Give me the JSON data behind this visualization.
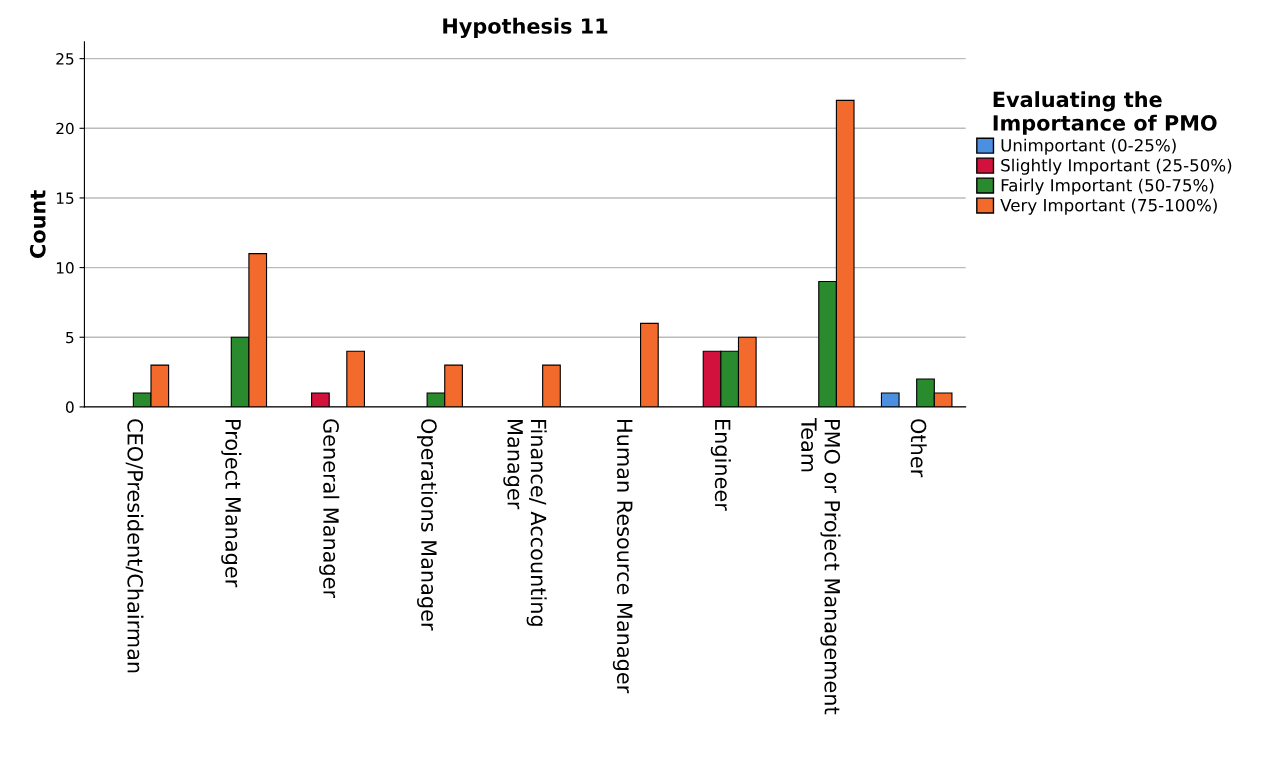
{
  "chart_data": {
    "type": "bar",
    "title": "Hypothesis 11",
    "ylabel": "Count",
    "legend_title": "Evaluating the\nImportance of PMO",
    "categories": [
      "CEO/President/Chairman",
      "Project Manager",
      "General Manager",
      "Operations Manager",
      "Finance/ Accounting\nManager",
      "Human Resource Manager",
      "Engineer",
      "PMO or Project Management\nTeam",
      "Other"
    ],
    "series": [
      {
        "name": "Unimportant (0-25%)",
        "color": "#4a8fe0",
        "values": [
          null,
          null,
          null,
          null,
          null,
          null,
          null,
          null,
          1
        ]
      },
      {
        "name": "Slightly Important (25-50%)",
        "color": "#d2123c",
        "values": [
          null,
          null,
          1,
          null,
          null,
          null,
          4,
          null,
          null
        ]
      },
      {
        "name": "Fairly Important (50-75%)",
        "color": "#2a8a2e",
        "values": [
          1,
          5,
          null,
          1,
          null,
          null,
          4,
          9,
          2
        ]
      },
      {
        "name": "Very Important (75-100%)",
        "color": "#f26b2c",
        "values": [
          3,
          11,
          4,
          3,
          3,
          6,
          5,
          22,
          1
        ]
      }
    ],
    "ylim": [
      0,
      26.2
    ],
    "yticks": [
      0,
      5,
      10,
      15,
      20,
      25
    ],
    "grid": "y",
    "legend": "top right"
  }
}
